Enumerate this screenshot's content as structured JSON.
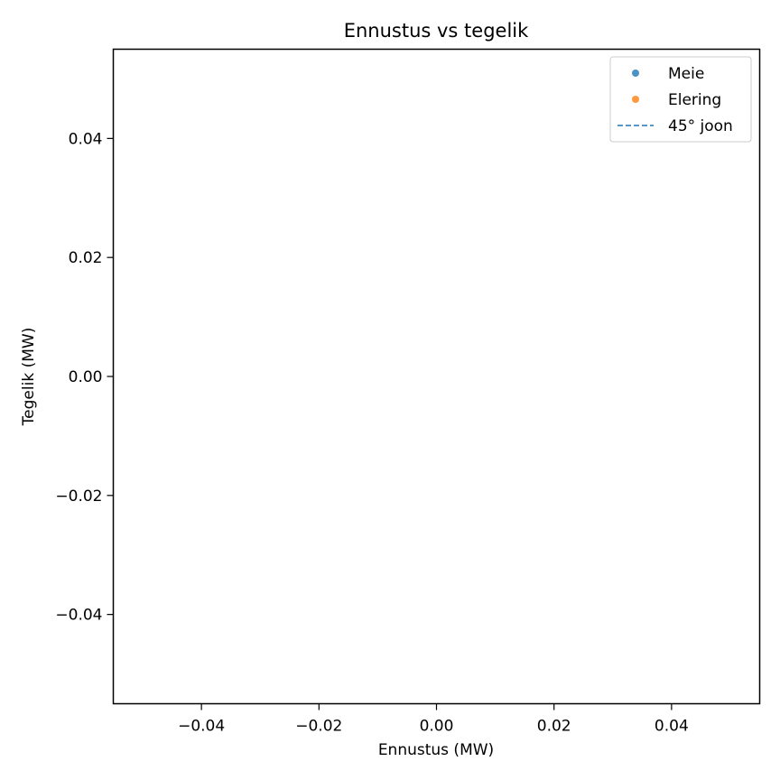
{
  "chart_data": {
    "type": "scatter",
    "title": "Ennustus vs tegelik",
    "xlabel": "Ennustus (MW)",
    "ylabel": "Tegelik (MW)",
    "xlim": [
      -0.055,
      0.055
    ],
    "ylim": [
      -0.055,
      0.055
    ],
    "xticks": [
      -0.04,
      -0.02,
      0.0,
      0.02,
      0.04
    ],
    "yticks": [
      -0.04,
      -0.02,
      0.0,
      0.02,
      0.04
    ],
    "xtick_labels": [
      "−0.04",
      "−0.02",
      "0.00",
      "0.02",
      "0.04"
    ],
    "ytick_labels": [
      "−0.04",
      "−0.02",
      "0.00",
      "0.02",
      "0.04"
    ],
    "grid": false,
    "legend_position": "top-right",
    "series": [
      {
        "name": "Meie",
        "kind": "scatter",
        "color": "#1f77b4",
        "x": [],
        "y": []
      },
      {
        "name": "Elering",
        "kind": "scatter",
        "color": "#ff7f0e",
        "x": [],
        "y": []
      },
      {
        "name": "45° joon",
        "kind": "line",
        "style": "dashed",
        "color": "#1f77b4",
        "x": [],
        "y": []
      }
    ]
  }
}
